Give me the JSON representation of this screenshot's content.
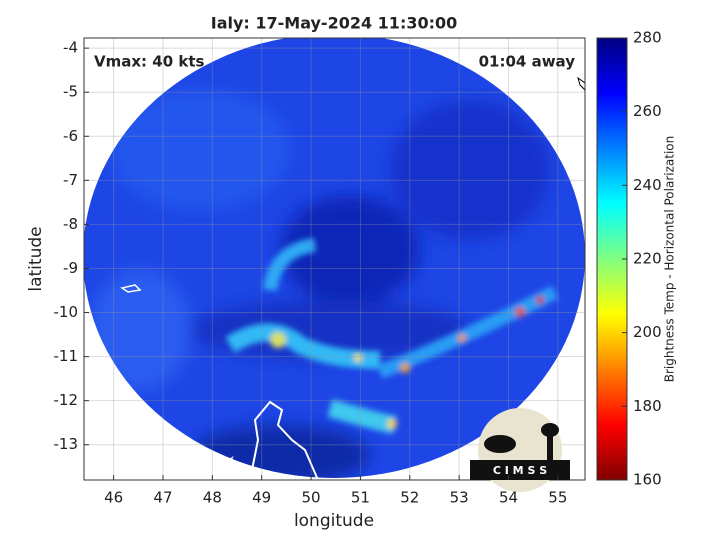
{
  "chart_data": {
    "type": "map",
    "title": "Ialy: 17-May-2024 11:30:00",
    "annotations": [
      "Vmax: 40 kts",
      "01:04 away"
    ],
    "xlabel": "longitude",
    "ylabel": "latitude",
    "xlim": [
      45.4,
      55.55
    ],
    "ylim": [
      -13.8,
      -3.77
    ],
    "xticks": [
      46,
      47,
      48,
      49,
      50,
      51,
      52,
      53,
      54,
      55
    ],
    "yticks": [
      -13,
      -12,
      -11,
      -10,
      -9,
      -8,
      -7,
      -6,
      -5,
      -4
    ],
    "grid": true,
    "colorbar": {
      "label": "Brightness Temp - Horizontal Polarization",
      "lim": [
        160,
        280
      ],
      "ticks": [
        160,
        180,
        200,
        220,
        240,
        260,
        280
      ],
      "colors": [
        "#800000",
        "#ff0000",
        "#ff8000",
        "#ffff00",
        "#80ff80",
        "#00ffff",
        "#0080ff",
        "#0000ff",
        "#000080"
      ]
    }
  },
  "logo": {
    "text": "C I M S S"
  }
}
